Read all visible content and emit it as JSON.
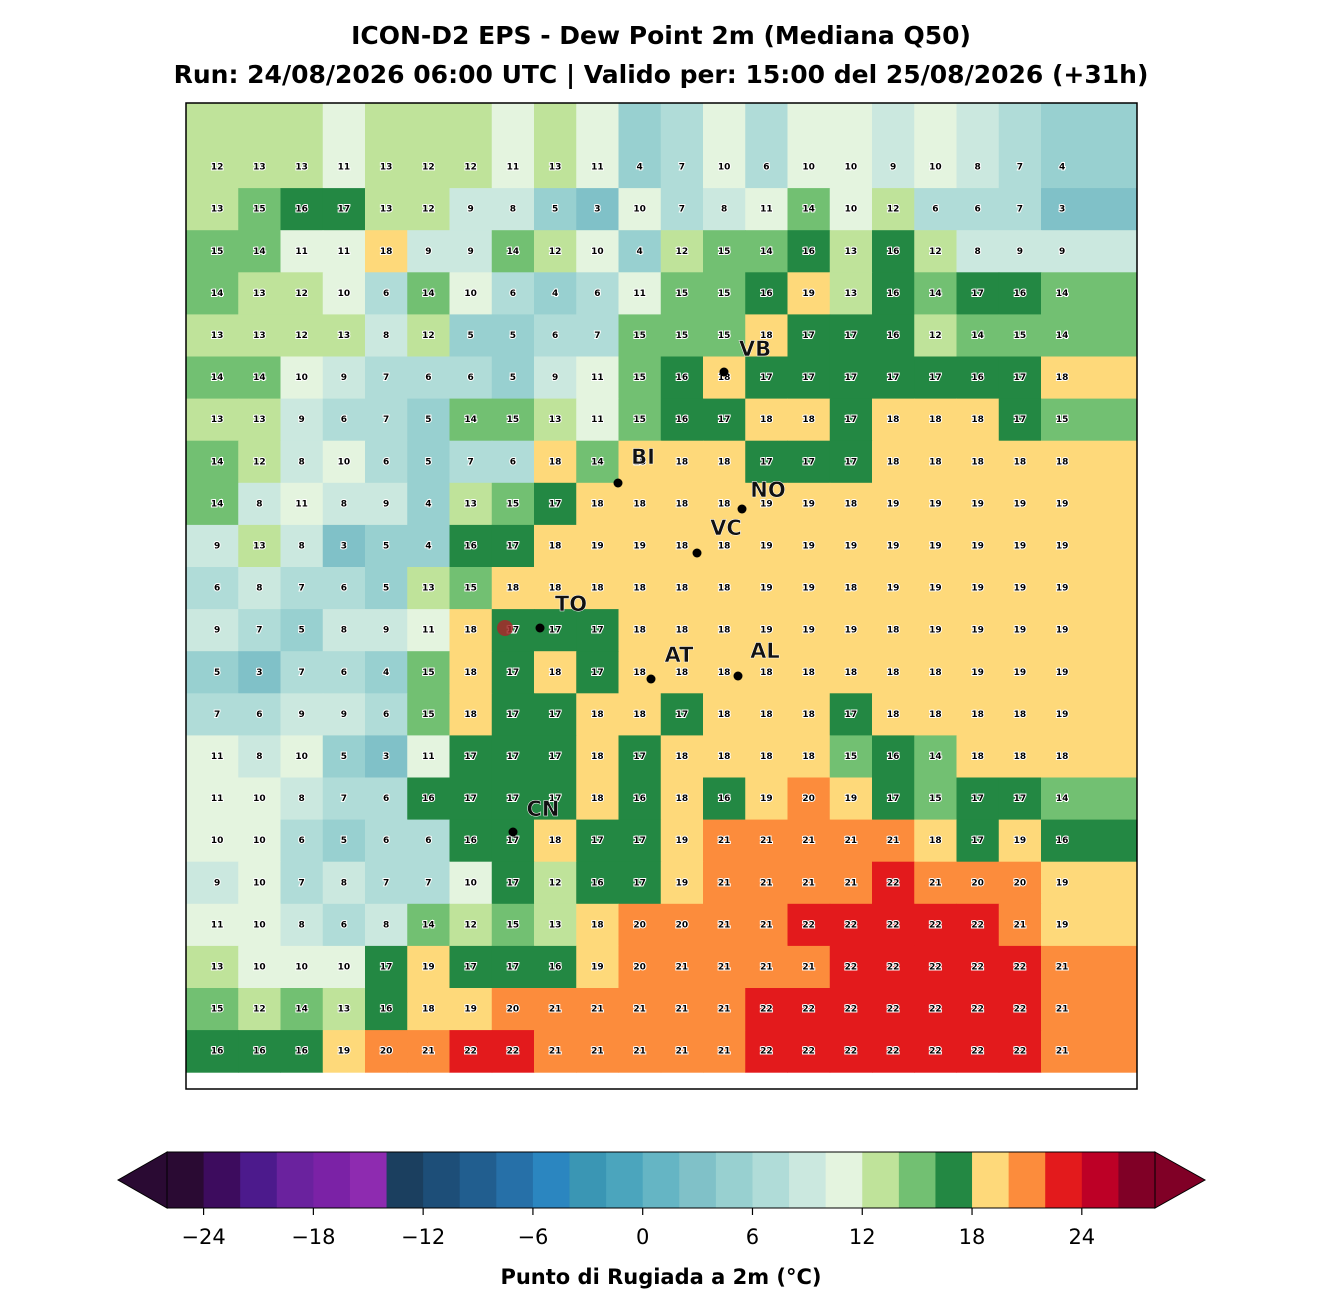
{
  "header": {
    "title": "ICON-D2 EPS - Dew Point 2m (Mediana Q50)",
    "subtitle": "Run: 24/08/2026 06:00 UTC | Valido per: 15:00 del 25/08/2026 (+31h)"
  },
  "map": {
    "grid": [
      [
        12,
        13,
        13,
        11,
        13,
        12,
        12,
        11,
        13,
        11,
        4,
        7,
        10,
        6,
        10,
        10,
        9,
        10,
        8,
        7,
        4
      ],
      [
        13,
        15,
        16,
        17,
        13,
        12,
        9,
        8,
        5,
        3,
        10,
        7,
        8,
        11,
        14,
        10,
        12,
        6,
        6,
        7,
        3
      ],
      [
        15,
        14,
        11,
        11,
        18,
        9,
        9,
        14,
        12,
        10,
        4,
        12,
        15,
        14,
        16,
        13,
        16,
        12,
        8,
        9,
        9
      ],
      [
        14,
        13,
        12,
        10,
        6,
        14,
        10,
        6,
        4,
        6,
        11,
        15,
        15,
        16,
        19,
        13,
        16,
        14,
        17,
        16,
        14
      ],
      [
        13,
        13,
        12,
        13,
        8,
        12,
        5,
        5,
        6,
        7,
        15,
        15,
        15,
        18,
        17,
        17,
        16,
        12,
        14,
        15,
        14
      ],
      [
        14,
        14,
        10,
        9,
        7,
        6,
        6,
        5,
        9,
        11,
        15,
        16,
        18,
        17,
        17,
        17,
        17,
        17,
        16,
        17,
        18
      ],
      [
        13,
        13,
        9,
        6,
        7,
        5,
        14,
        15,
        13,
        11,
        15,
        16,
        17,
        18,
        18,
        17,
        18,
        18,
        18,
        17,
        15
      ],
      [
        14,
        12,
        8,
        10,
        6,
        5,
        7,
        6,
        18,
        14,
        18,
        18,
        18,
        17,
        17,
        17,
        18,
        18,
        18,
        18,
        18
      ],
      [
        14,
        8,
        11,
        8,
        9,
        4,
        13,
        15,
        17,
        18,
        18,
        18,
        18,
        19,
        19,
        18,
        19,
        19,
        19,
        19,
        19
      ],
      [
        9,
        13,
        8,
        3,
        5,
        4,
        16,
        17,
        18,
        19,
        19,
        18,
        18,
        19,
        19,
        19,
        19,
        19,
        19,
        19,
        19
      ],
      [
        6,
        8,
        7,
        6,
        5,
        13,
        15,
        18,
        18,
        18,
        18,
        18,
        18,
        19,
        19,
        18,
        19,
        19,
        19,
        19,
        19
      ],
      [
        9,
        7,
        5,
        8,
        9,
        11,
        18,
        17,
        17,
        17,
        18,
        18,
        18,
        19,
        19,
        19,
        18,
        19,
        19,
        19,
        19
      ],
      [
        5,
        3,
        7,
        6,
        4,
        15,
        18,
        17,
        18,
        17,
        18,
        18,
        18,
        18,
        18,
        18,
        18,
        18,
        19,
        19,
        19
      ],
      [
        7,
        6,
        9,
        9,
        6,
        15,
        18,
        17,
        17,
        18,
        18,
        17,
        18,
        18,
        18,
        17,
        18,
        18,
        18,
        18,
        19
      ],
      [
        11,
        8,
        10,
        5,
        3,
        11,
        17,
        17,
        17,
        18,
        17,
        18,
        18,
        18,
        18,
        15,
        16,
        14,
        18,
        18,
        18
      ],
      [
        11,
        10,
        8,
        7,
        6,
        16,
        17,
        17,
        17,
        18,
        16,
        18,
        16,
        19,
        20,
        19,
        17,
        15,
        17,
        17,
        14
      ],
      [
        10,
        10,
        6,
        5,
        6,
        6,
        16,
        17,
        18,
        17,
        17,
        19,
        21,
        21,
        21,
        21,
        21,
        18,
        17,
        19,
        16
      ],
      [
        9,
        10,
        7,
        8,
        7,
        7,
        10,
        17,
        12,
        16,
        17,
        19,
        21,
        21,
        21,
        21,
        22,
        21,
        20,
        20,
        19
      ],
      [
        11,
        10,
        8,
        6,
        8,
        14,
        12,
        15,
        13,
        18,
        20,
        20,
        21,
        21,
        22,
        22,
        22,
        22,
        22,
        21,
        19
      ],
      [
        13,
        10,
        10,
        10,
        17,
        19,
        17,
        17,
        16,
        19,
        20,
        21,
        21,
        21,
        21,
        22,
        22,
        22,
        22,
        22,
        21
      ],
      [
        15,
        12,
        14,
        13,
        16,
        18,
        19,
        20,
        21,
        21,
        21,
        21,
        21,
        22,
        22,
        22,
        22,
        22,
        22,
        22,
        21
      ],
      [
        16,
        16,
        16,
        19,
        20,
        21,
        22,
        22,
        21,
        21,
        21,
        21,
        21,
        22,
        22,
        22,
        22,
        22,
        22,
        22,
        21
      ]
    ],
    "cities": [
      "VB",
      "BI",
      "NO",
      "VC",
      "TO",
      "AT",
      "AL",
      "CN"
    ]
  },
  "colorbar": {
    "label": "Punto di Rugiada a 2m (°C)",
    "range": [
      -26,
      28
    ],
    "colors": [
      "#2a0a33",
      "#3d0c5e",
      "#4c1a8c",
      "#6a229e",
      "#7b22a6",
      "#8e2bb0",
      "#1b3f5f",
      "#1d4e78",
      "#215e8f",
      "#2670a8",
      "#2b86c0",
      "#3a96b4",
      "#4ba5bd",
      "#65b5c4",
      "#80c1c8",
      "#98d0d0",
      "#b0dcd8",
      "#cbe8df",
      "#e4f4df",
      "#bfe39a",
      "#72c072",
      "#238843",
      "#fed97a",
      "#fc8c3c",
      "#e31a1c",
      "#bd0026",
      "#800026"
    ],
    "ticks": [
      {
        "value": -24,
        "label": "−24"
      },
      {
        "value": -18,
        "label": "−18"
      },
      {
        "value": -12,
        "label": "−12"
      },
      {
        "value": -6,
        "label": "−6"
      },
      0,
      6,
      12,
      18,
      24
    ]
  }
}
